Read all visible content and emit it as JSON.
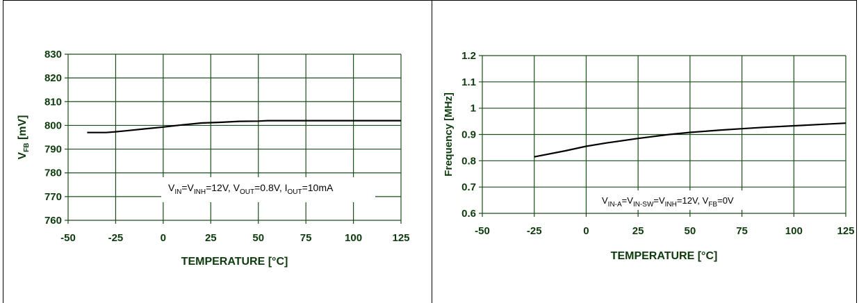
{
  "colors": {
    "grid": "#1a4d1a",
    "axis_text": "#0d3b0d",
    "series_line": "#000000",
    "panel_border": "#000000",
    "watermark": "#e02020"
  },
  "chart_data": [
    {
      "type": "line",
      "title": "",
      "xlabel": "TEMPERATURE  [°C]",
      "ylabel_main": "V",
      "ylabel_sub": "FB",
      "ylabel_unit": " [mV]",
      "xlim": [
        -50,
        125
      ],
      "ylim": [
        760,
        830
      ],
      "xticks": [
        "-50",
        "-25",
        "0",
        "25",
        "50",
        "75",
        "100",
        "125"
      ],
      "yticks": [
        "760",
        "770",
        "780",
        "790",
        "800",
        "810",
        "820",
        "830"
      ],
      "grid": true,
      "annotation_parts": [
        {
          "t": "V"
        },
        {
          "t": "IN",
          "sub": true
        },
        {
          "t": "=V"
        },
        {
          "t": "INH",
          "sub": true
        },
        {
          "t": "=12V, V"
        },
        {
          "t": "OUT",
          "sub": true
        },
        {
          "t": "=0.8V, I"
        },
        {
          "t": "OUT",
          "sub": true
        },
        {
          "t": "=10mA"
        }
      ],
      "series": [
        {
          "x": [
            -40,
            -30,
            -25,
            -20,
            -10,
            0,
            10,
            20,
            30,
            40,
            50,
            55,
            75,
            100,
            125
          ],
          "y": [
            797,
            797,
            797.3,
            797.7,
            798.5,
            799.3,
            800.2,
            801,
            801.3,
            801.7,
            801.8,
            802,
            802,
            802,
            802
          ]
        }
      ]
    },
    {
      "type": "line",
      "title": "",
      "xlabel": "TEMPERATURE  [°C]",
      "ylabel_main": "Frequency [MHz]",
      "xlim": [
        -50,
        125
      ],
      "ylim": [
        0.6,
        1.2
      ],
      "xticks": [
        "-50",
        "-25",
        "0",
        "25",
        "50",
        "75",
        "100",
        "125"
      ],
      "yticks": [
        "0.6",
        "0.7",
        "0.8",
        "0.9",
        "1",
        "1.1",
        "1.2"
      ],
      "grid": true,
      "annotation_parts": [
        {
          "t": "V"
        },
        {
          "t": "IN-A",
          "sub": true
        },
        {
          "t": "=V"
        },
        {
          "t": "IN-SW",
          "sub": true
        },
        {
          "t": "=V"
        },
        {
          "t": "INH",
          "sub": true
        },
        {
          "t": "=12V, V"
        },
        {
          "t": "FB",
          "sub": true
        },
        {
          "t": "=0V"
        }
      ],
      "series": [
        {
          "x": [
            -25,
            -10,
            0,
            10,
            25,
            40,
            50,
            65,
            75,
            85,
            100,
            115,
            125
          ],
          "y": [
            0.815,
            0.838,
            0.855,
            0.868,
            0.885,
            0.9,
            0.908,
            0.917,
            0.922,
            0.927,
            0.933,
            0.939,
            0.943
          ]
        }
      ]
    }
  ]
}
